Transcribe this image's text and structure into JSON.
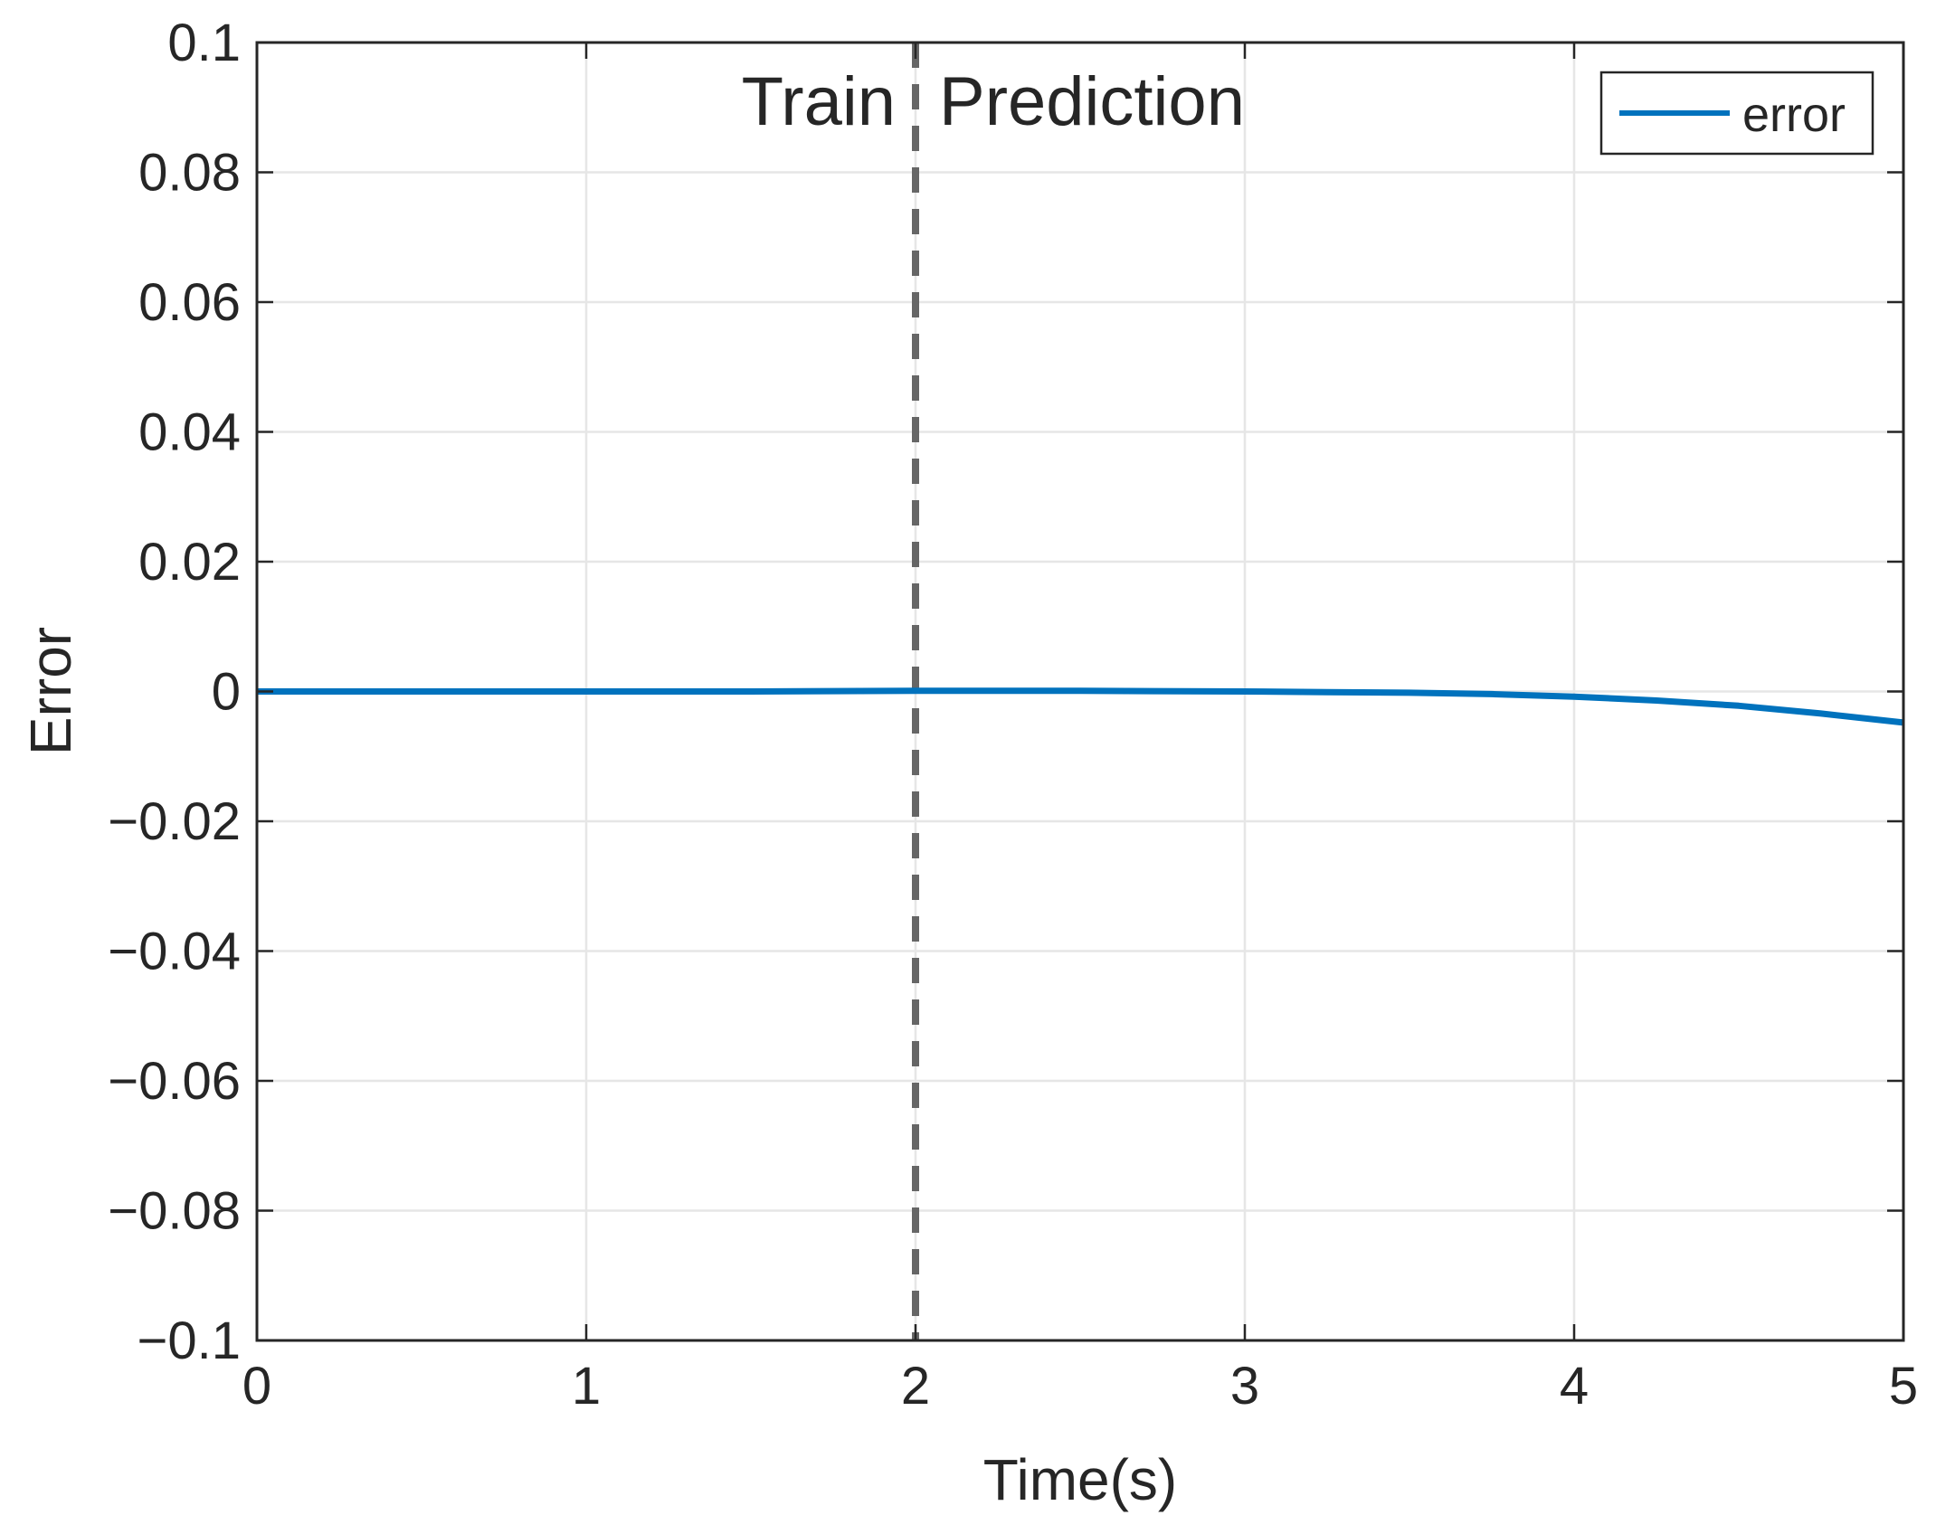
{
  "chart_data": {
    "type": "line",
    "xlabel": "Time(s)",
    "ylabel": "Error",
    "xlim": [
      0,
      5
    ],
    "ylim": [
      -0.1,
      0.1
    ],
    "x_ticks": [
      0,
      1,
      2,
      3,
      4,
      5
    ],
    "x_tick_labels": [
      "0",
      "1",
      "2",
      "3",
      "4",
      "5"
    ],
    "y_ticks": [
      -0.1,
      -0.08,
      -0.06,
      -0.04,
      -0.02,
      0,
      0.02,
      0.04,
      0.06,
      0.08,
      0.1
    ],
    "y_tick_labels": [
      "−0.1",
      "−0.08",
      "−0.06",
      "−0.04",
      "−0.02",
      "0",
      "0.02",
      "0.04",
      "0.06",
      "0.08",
      "0.1"
    ],
    "grid": true,
    "legend_position": "top-right",
    "series": [
      {
        "name": "error",
        "color": "#0072BD",
        "x": [
          0,
          0.5,
          1,
          1.5,
          2,
          2.5,
          3,
          3.25,
          3.5,
          3.75,
          4,
          4.25,
          4.5,
          4.75,
          5
        ],
        "y": [
          0,
          0,
          0,
          0,
          0.0001,
          0.0001,
          0,
          -0.0001,
          -0.0002,
          -0.0004,
          -0.0008,
          -0.0014,
          -0.0022,
          -0.0034,
          -0.0048
        ]
      }
    ],
    "vline": {
      "x": 2,
      "style": "dashed",
      "color": "#666666"
    },
    "annotations": [
      {
        "text": "Train",
        "x": 2,
        "side": "left"
      },
      {
        "text": "Prediction",
        "x": 2,
        "side": "right"
      }
    ]
  }
}
